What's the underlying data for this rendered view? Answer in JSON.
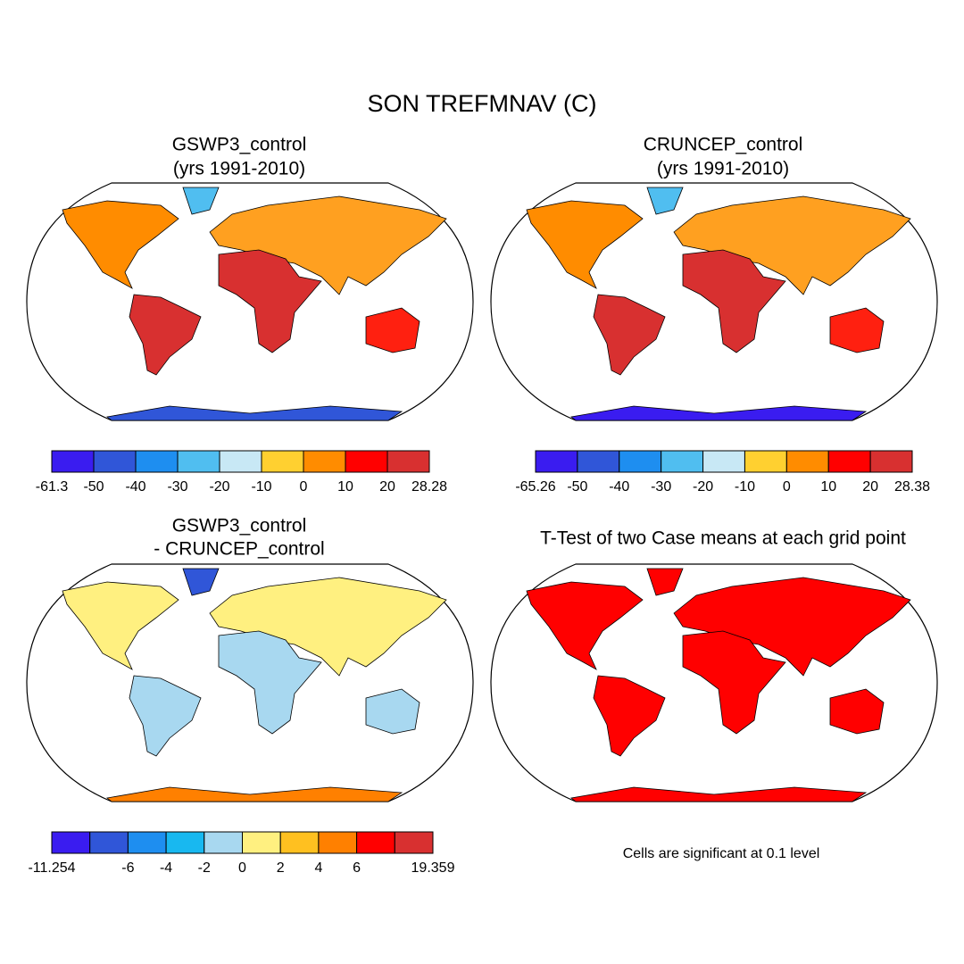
{
  "title": "SON TREFMNAV (C)",
  "panels": [
    {
      "title_lines": [
        "GSWP3_control",
        "(yrs 1991-2010)"
      ],
      "colorbar": {
        "colors": [
          "#3a1cf0",
          "#3056d8",
          "#1e8ef0",
          "#50bef0",
          "#c8e8f5",
          "#ffd030",
          "#ff8c00",
          "#ff0000",
          "#d83030"
        ],
        "levels": [
          -61.3,
          -50,
          -40,
          -30,
          -20,
          -10,
          0,
          10,
          20,
          28.28
        ]
      }
    },
    {
      "title_lines": [
        "CRUNCEP_control",
        "(yrs 1991-2010)"
      ],
      "colorbar": {
        "colors": [
          "#3a1cf0",
          "#3056d8",
          "#1e8ef0",
          "#50bef0",
          "#c8e8f5",
          "#ffd030",
          "#ff8c00",
          "#ff0000",
          "#d83030"
        ],
        "levels": [
          -65.26,
          -50,
          -40,
          -30,
          -20,
          -10,
          0,
          10,
          20,
          28.38
        ]
      }
    },
    {
      "title_lines": [
        "GSWP3_control",
        "- CRUNCEP_control"
      ],
      "colorbar": {
        "colors": [
          "#3a1cf0",
          "#3056d8",
          "#1e8ef0",
          "#18b8f0",
          "#a8d8f0",
          "#fff080",
          "#ffc020",
          "#ff8000",
          "#ff0000",
          "#d83030"
        ],
        "levels": [
          -11.254,
          null,
          -6,
          -4,
          -2,
          0,
          2,
          4,
          6,
          null,
          19.359
        ]
      }
    },
    {
      "title_lines": [
        "T-Test of two Case means at each grid point"
      ],
      "note": "Cells are significant at 0.1 level"
    }
  ]
}
